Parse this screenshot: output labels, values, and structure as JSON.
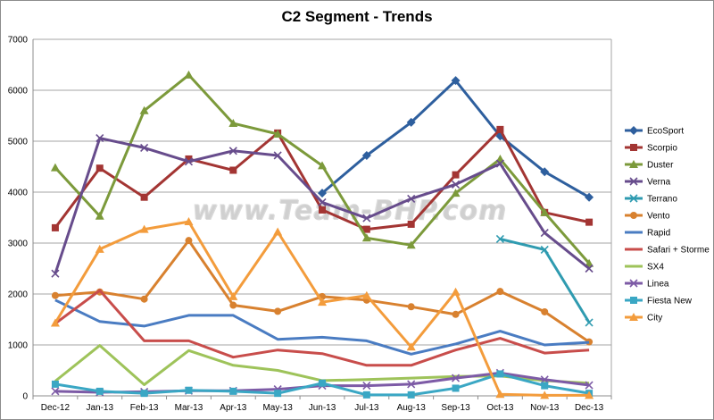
{
  "chart_data": {
    "type": "line",
    "title": "C2 Segment - Trends",
    "watermark": "www.Team-BHP.com",
    "xlabel": "",
    "ylabel": "",
    "ylim": [
      0,
      7000
    ],
    "yticks": [
      "0",
      "1000",
      "2000",
      "3000",
      "4000",
      "5000",
      "6000",
      "7000"
    ],
    "grid": true,
    "legend_position": "right",
    "categories": [
      "Dec-12",
      "Jan-13",
      "Feb-13",
      "Mar-13",
      "Apr-13",
      "May-13",
      "Jun-13",
      "Jul-13",
      "Aug-13",
      "Sep-13",
      "Oct-13",
      "Nov-13",
      "Dec-13"
    ],
    "series": [
      {
        "name": "EcoSport",
        "color": "#2e5f9e",
        "marker": "diamond",
        "values": [
          null,
          null,
          null,
          null,
          null,
          null,
          3980,
          4720,
          5370,
          6190,
          5100,
          4400,
          3900
        ]
      },
      {
        "name": "Scorpio",
        "color": "#a33533",
        "marker": "square",
        "values": [
          3300,
          4470,
          3900,
          4650,
          4430,
          5160,
          3650,
          3270,
          3370,
          4340,
          5230,
          3600,
          3410
        ]
      },
      {
        "name": "Duster",
        "color": "#7c9a3b",
        "marker": "triangle",
        "values": [
          4480,
          3530,
          5600,
          6300,
          5350,
          5140,
          4520,
          3100,
          2960,
          3980,
          4650,
          3600,
          2600
        ]
      },
      {
        "name": "Verna",
        "color": "#674c8c",
        "marker": "x",
        "values": [
          2400,
          5060,
          4870,
          4600,
          4810,
          4720,
          3800,
          3490,
          3870,
          4150,
          4560,
          3200,
          2500
        ]
      },
      {
        "name": "Terrano",
        "color": "#2f9bb0",
        "marker": "x",
        "values": [
          null,
          null,
          null,
          null,
          null,
          null,
          null,
          null,
          null,
          null,
          3080,
          2870,
          1440
        ]
      },
      {
        "name": "Vento",
        "color": "#d8812f",
        "marker": "circle",
        "values": [
          1970,
          2040,
          1900,
          3050,
          1780,
          1660,
          1950,
          1880,
          1750,
          1600,
          2050,
          1650,
          1060
        ]
      },
      {
        "name": "Rapid",
        "color": "#4a7cc2",
        "marker": "none",
        "values": [
          1880,
          1460,
          1370,
          1580,
          1580,
          1110,
          1150,
          1080,
          820,
          1020,
          1270,
          1000,
          1050
        ]
      },
      {
        "name": "Safari + Storme",
        "color": "#c84d4b",
        "marker": "none",
        "values": [
          1420,
          2070,
          1080,
          1080,
          760,
          900,
          830,
          600,
          600,
          900,
          1130,
          840,
          900
        ]
      },
      {
        "name": "SX4",
        "color": "#9ec35a",
        "marker": "none",
        "values": [
          290,
          990,
          220,
          890,
          600,
          500,
          300,
          320,
          350,
          380,
          390,
          300,
          250
        ]
      },
      {
        "name": "Linea",
        "color": "#7d5ba6",
        "marker": "x",
        "values": [
          90,
          70,
          80,
          100,
          100,
          130,
          200,
          200,
          230,
          350,
          450,
          320,
          210
        ]
      },
      {
        "name": "Fiesta New",
        "color": "#3aa7c4",
        "marker": "square",
        "values": [
          230,
          90,
          50,
          110,
          90,
          50,
          250,
          20,
          20,
          150,
          430,
          200,
          50
        ]
      },
      {
        "name": "City",
        "color": "#f39c3c",
        "marker": "triangle",
        "values": [
          1430,
          2880,
          3270,
          3420,
          1950,
          3220,
          1840,
          1970,
          960,
          2040,
          30,
          10,
          10
        ]
      }
    ]
  }
}
